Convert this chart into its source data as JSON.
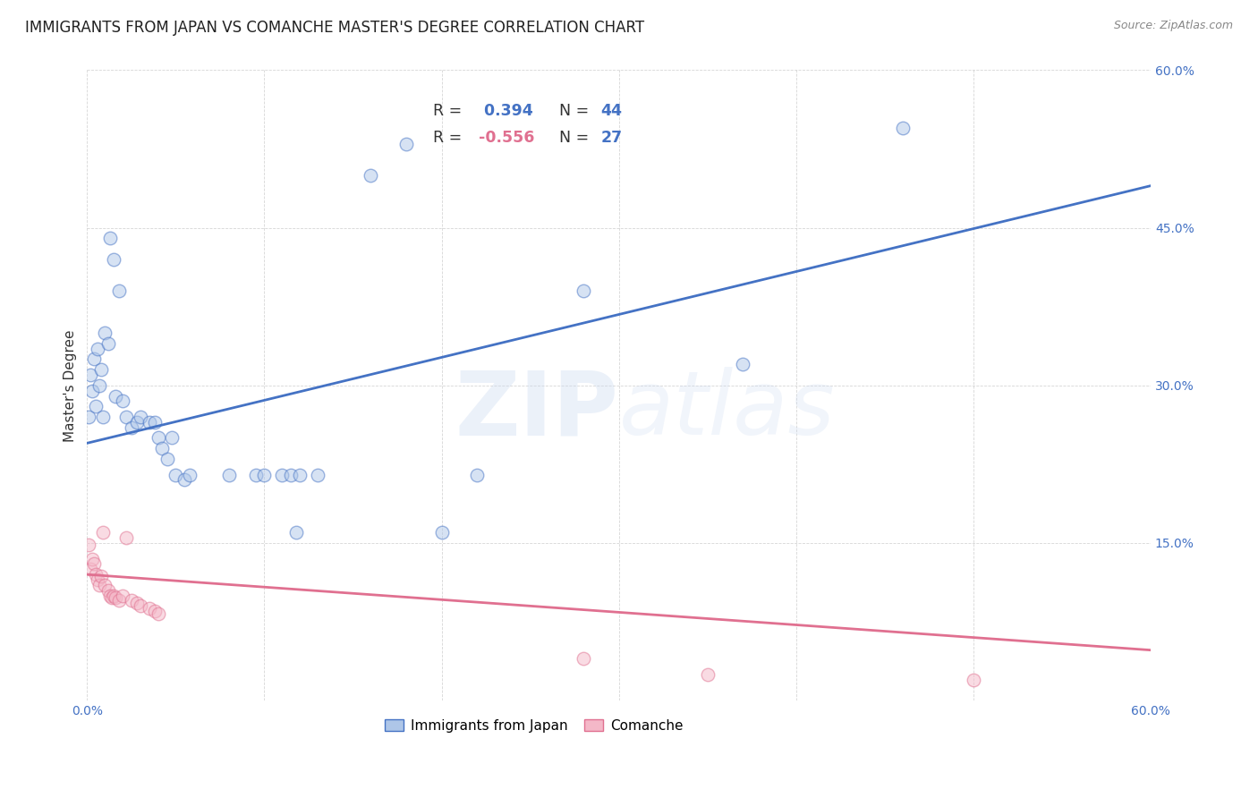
{
  "title": "IMMIGRANTS FROM JAPAN VS COMANCHE MASTER'S DEGREE CORRELATION CHART",
  "source": "Source: ZipAtlas.com",
  "ylabel": "Master's Degree",
  "watermark": "ZIPatlas",
  "xlim": [
    0.0,
    0.6
  ],
  "ylim": [
    0.0,
    0.6
  ],
  "xticks": [
    0.0,
    0.1,
    0.2,
    0.3,
    0.4,
    0.5,
    0.6
  ],
  "yticks": [
    0.0,
    0.15,
    0.3,
    0.45,
    0.6
  ],
  "xtick_labels": [
    "0.0%",
    "",
    "",
    "",
    "",
    "",
    "60.0%"
  ],
  "ytick_labels": [
    "",
    "15.0%",
    "30.0%",
    "45.0%",
    "60.0%"
  ],
  "blue_R": 0.394,
  "blue_N": 44,
  "pink_R": -0.556,
  "pink_N": 27,
  "blue_color": "#aec6e8",
  "blue_line_color": "#4472c4",
  "pink_color": "#f4b8c8",
  "pink_line_color": "#e07090",
  "blue_scatter": [
    [
      0.001,
      0.27
    ],
    [
      0.002,
      0.31
    ],
    [
      0.003,
      0.295
    ],
    [
      0.004,
      0.325
    ],
    [
      0.005,
      0.28
    ],
    [
      0.006,
      0.335
    ],
    [
      0.007,
      0.3
    ],
    [
      0.008,
      0.315
    ],
    [
      0.009,
      0.27
    ],
    [
      0.01,
      0.35
    ],
    [
      0.012,
      0.34
    ],
    [
      0.013,
      0.44
    ],
    [
      0.015,
      0.42
    ],
    [
      0.016,
      0.29
    ],
    [
      0.018,
      0.39
    ],
    [
      0.02,
      0.285
    ],
    [
      0.022,
      0.27
    ],
    [
      0.025,
      0.26
    ],
    [
      0.028,
      0.265
    ],
    [
      0.03,
      0.27
    ],
    [
      0.035,
      0.265
    ],
    [
      0.038,
      0.265
    ],
    [
      0.04,
      0.25
    ],
    [
      0.042,
      0.24
    ],
    [
      0.045,
      0.23
    ],
    [
      0.048,
      0.25
    ],
    [
      0.05,
      0.215
    ],
    [
      0.055,
      0.21
    ],
    [
      0.058,
      0.215
    ],
    [
      0.08,
      0.215
    ],
    [
      0.095,
      0.215
    ],
    [
      0.1,
      0.215
    ],
    [
      0.11,
      0.215
    ],
    [
      0.115,
      0.215
    ],
    [
      0.118,
      0.16
    ],
    [
      0.12,
      0.215
    ],
    [
      0.13,
      0.215
    ],
    [
      0.16,
      0.5
    ],
    [
      0.18,
      0.53
    ],
    [
      0.2,
      0.16
    ],
    [
      0.22,
      0.215
    ],
    [
      0.28,
      0.39
    ],
    [
      0.37,
      0.32
    ],
    [
      0.46,
      0.545
    ]
  ],
  "pink_scatter": [
    [
      0.001,
      0.148
    ],
    [
      0.002,
      0.125
    ],
    [
      0.003,
      0.135
    ],
    [
      0.004,
      0.13
    ],
    [
      0.005,
      0.12
    ],
    [
      0.006,
      0.115
    ],
    [
      0.007,
      0.11
    ],
    [
      0.008,
      0.118
    ],
    [
      0.009,
      0.16
    ],
    [
      0.01,
      0.11
    ],
    [
      0.012,
      0.105
    ],
    [
      0.013,
      0.1
    ],
    [
      0.014,
      0.098
    ],
    [
      0.015,
      0.1
    ],
    [
      0.016,
      0.098
    ],
    [
      0.018,
      0.095
    ],
    [
      0.02,
      0.1
    ],
    [
      0.022,
      0.155
    ],
    [
      0.025,
      0.095
    ],
    [
      0.028,
      0.093
    ],
    [
      0.03,
      0.09
    ],
    [
      0.035,
      0.088
    ],
    [
      0.038,
      0.085
    ],
    [
      0.04,
      0.083
    ],
    [
      0.28,
      0.04
    ],
    [
      0.35,
      0.025
    ],
    [
      0.5,
      0.02
    ]
  ],
  "blue_line_x": [
    0.0,
    0.6
  ],
  "blue_line_y": [
    0.245,
    0.49
  ],
  "pink_line_x": [
    0.0,
    0.6
  ],
  "pink_line_y": [
    0.12,
    0.048
  ],
  "legend_labels": [
    "Immigrants from Japan",
    "Comanche"
  ],
  "background_color": "#ffffff",
  "grid_color": "#cccccc",
  "title_fontsize": 12,
  "axis_label_fontsize": 11,
  "tick_fontsize": 10,
  "scatter_size": 110,
  "scatter_alpha": 0.5,
  "scatter_lw": 1.0
}
